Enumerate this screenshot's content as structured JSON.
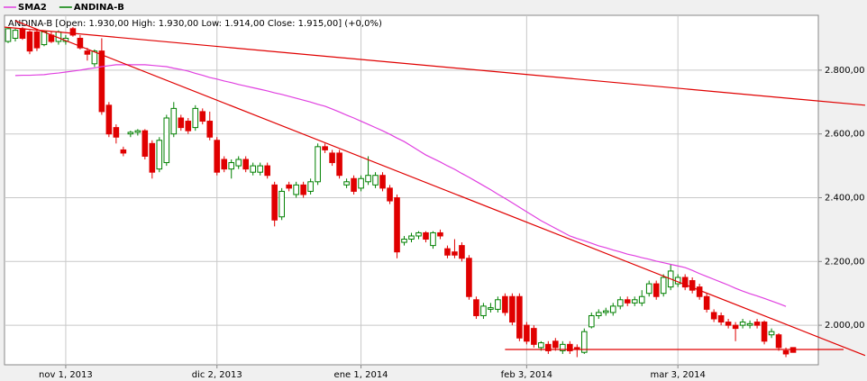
{
  "chart_data": {
    "type": "candlestick",
    "info": "ANDINA-B [Open: 1.930,00 High: 1.930,00 Low: 1.914,00 Close: 1.915,00] (+0,0%)",
    "categories": [
      null,
      null,
      null,
      null,
      null,
      null,
      null,
      null,
      "nov 1, 2013",
      null,
      null,
      null,
      null,
      null,
      null,
      null,
      null,
      null,
      null,
      null,
      null,
      null,
      null,
      null,
      null,
      null,
      null,
      null,
      null,
      "dic 2, 2013",
      null,
      null,
      null,
      null,
      null,
      null,
      null,
      null,
      null,
      null,
      null,
      null,
      null,
      null,
      null,
      null,
      null,
      null,
      null,
      "ene 1, 2014",
      null,
      null,
      null,
      null,
      null,
      null,
      null,
      null,
      null,
      null,
      null,
      null,
      null,
      null,
      null,
      null,
      null,
      null,
      null,
      null,
      null,
      null,
      "feb 3, 2014",
      null,
      null,
      null,
      null,
      null,
      null,
      null,
      null,
      null,
      null,
      null,
      null,
      null,
      null,
      null,
      null,
      null,
      null,
      null,
      null,
      "mar 3, 2014",
      null,
      null,
      null,
      null,
      null,
      null,
      null,
      null,
      null,
      null,
      null,
      null,
      null,
      null,
      null,
      null,
      null,
      null,
      null
    ],
    "series": [
      {
        "name": "ANDINA-B",
        "color": "#008000",
        "down_color": "#e00000",
        "open": [
          2890,
          2900,
          2930,
          2920,
          2920,
          2880,
          2910,
          2890,
          2890,
          2930,
          2900,
          2860,
          2820,
          2860,
          2690,
          2620,
          2550,
          2600,
          2605,
          2610,
          2570,
          2490,
          2510,
          2600,
          2650,
          2640,
          2620,
          2670,
          2640,
          2580,
          2520,
          2490,
          2500,
          2520,
          2480,
          2480,
          2500,
          2440,
          2340,
          2440,
          2410,
          2440,
          2420,
          2450,
          2560,
          2540,
          2540,
          2440,
          2460,
          2430,
          2450,
          2440,
          2470,
          2430,
          2400,
          2260,
          2270,
          2280,
          2290,
          2250,
          2290,
          2240,
          2230,
          2250,
          2210,
          2080,
          2030,
          2050,
          2050,
          2090,
          2090,
          2090,
          2000,
          1990,
          1930,
          1940,
          1950,
          1920,
          1940,
          1930,
          1915,
          1995,
          2030,
          2040,
          2040,
          2060,
          2080,
          2070,
          2070,
          2100,
          2130,
          2100,
          2120,
          2130,
          2150,
          2140,
          2120,
          2090,
          2040,
          2030,
          2010,
          2000,
          2000,
          2000,
          2010,
          2010,
          1970,
          1970,
          1920,
          1930,
          null,
          null,
          null
        ],
        "high": [
          2935,
          2930,
          2935,
          2925,
          2930,
          2925,
          2920,
          2925,
          2910,
          2935,
          2910,
          2870,
          2865,
          2900,
          2700,
          2630,
          2560,
          2610,
          2615,
          2615,
          2580,
          2590,
          2660,
          2700,
          2660,
          2650,
          2690,
          2680,
          2670,
          2590,
          2530,
          2520,
          2530,
          2530,
          2510,
          2510,
          2510,
          2450,
          2430,
          2450,
          2450,
          2450,
          2460,
          2570,
          2570,
          2550,
          2550,
          2460,
          2470,
          2470,
          2530,
          2480,
          2480,
          2440,
          2410,
          2280,
          2290,
          2295,
          2295,
          2295,
          2300,
          2250,
          2270,
          2260,
          2220,
          2090,
          2070,
          2070,
          2090,
          2100,
          2100,
          2100,
          2010,
          2000,
          1950,
          1950,
          1960,
          1950,
          1950,
          1940,
          1990,
          2040,
          2050,
          2055,
          2070,
          2090,
          2090,
          2090,
          2110,
          2140,
          2140,
          2160,
          2190,
          2160,
          2160,
          2150,
          2130,
          2100,
          2050,
          2040,
          2020,
          2010,
          2020,
          2015,
          2020,
          2015,
          1990,
          1975,
          1930,
          1930,
          null,
          null,
          null
        ],
        "low": [
          2885,
          2890,
          2895,
          2850,
          2860,
          2875,
          2885,
          2880,
          2880,
          2905,
          2865,
          2830,
          2810,
          2660,
          2590,
          2570,
          2530,
          2590,
          2595,
          2520,
          2460,
          2480,
          2500,
          2590,
          2610,
          2600,
          2610,
          2630,
          2580,
          2470,
          2480,
          2460,
          2490,
          2480,
          2470,
          2470,
          2460,
          2310,
          2330,
          2420,
          2400,
          2400,
          2410,
          2440,
          2540,
          2500,
          2460,
          2430,
          2410,
          2420,
          2440,
          2430,
          2420,
          2380,
          2210,
          2250,
          2260,
          2270,
          2260,
          2240,
          2270,
          2210,
          2210,
          2200,
          2080,
          2020,
          2020,
          2040,
          2040,
          2030,
          2000,
          1950,
          1940,
          1930,
          1920,
          1910,
          1920,
          1910,
          1910,
          1900,
          1910,
          1990,
          2020,
          2030,
          2030,
          2050,
          2060,
          2060,
          2060,
          2090,
          2080,
          2090,
          2110,
          2120,
          2110,
          2100,
          2080,
          2040,
          2010,
          2000,
          1990,
          1950,
          1990,
          1990,
          1990,
          1940,
          1960,
          1920,
          1900,
          1914,
          null,
          null,
          null
        ],
        "close": [
          2930,
          2925,
          2900,
          2860,
          2870,
          2920,
          2890,
          2920,
          2900,
          2910,
          2870,
          2850,
          2860,
          2670,
          2600,
          2590,
          2540,
          2605,
          2610,
          2530,
          2480,
          2580,
          2650,
          2680,
          2620,
          2610,
          2680,
          2640,
          2590,
          2480,
          2490,
          2510,
          2520,
          2490,
          2500,
          2500,
          2470,
          2330,
          2420,
          2430,
          2440,
          2410,
          2450,
          2560,
          2550,
          2510,
          2470,
          2450,
          2420,
          2460,
          2470,
          2470,
          2430,
          2390,
          2230,
          2270,
          2280,
          2290,
          2270,
          2290,
          2280,
          2220,
          2220,
          2210,
          2090,
          2030,
          2060,
          2055,
          2080,
          2040,
          2010,
          1960,
          1950,
          1940,
          1945,
          1920,
          1930,
          1940,
          1920,
          1925,
          1980,
          2030,
          2040,
          2045,
          2060,
          2080,
          2070,
          2080,
          2090,
          2130,
          2090,
          2150,
          2170,
          2150,
          2120,
          2110,
          2090,
          2050,
          2020,
          2010,
          2000,
          1990,
          2010,
          2005,
          2000,
          1950,
          1980,
          1930,
          1910,
          1915,
          null,
          null,
          null
        ]
      },
      {
        "name": "SMA2",
        "type": "line",
        "color": "#e040e0",
        "values": [
          null,
          2783,
          2784,
          2784,
          2785,
          2786,
          2789,
          2791,
          2794,
          2797,
          2800,
          2804,
          2807,
          2811,
          2814,
          2817,
          2817,
          2817,
          2817,
          2817,
          2815,
          2813,
          2811,
          2806,
          2802,
          2797,
          2790,
          2784,
          2777,
          2772,
          2766,
          2761,
          2755,
          2750,
          2745,
          2740,
          2735,
          2729,
          2724,
          2718,
          2712,
          2706,
          2700,
          2693,
          2687,
          2678,
          2669,
          2659,
          2650,
          2640,
          2630,
          2620,
          2610,
          2599,
          2587,
          2576,
          2562,
          2548,
          2534,
          2523,
          2512,
          2500,
          2489,
          2476,
          2464,
          2451,
          2438,
          2425,
          2411,
          2398,
          2384,
          2370,
          2356,
          2342,
          2328,
          2316,
          2304,
          2292,
          2280,
          2272,
          2265,
          2257,
          2249,
          2243,
          2236,
          2230,
          2223,
          2218,
          2212,
          2207,
          2201,
          2196,
          2191,
          2186,
          2181,
          2172,
          2162,
          2153,
          2144,
          2135,
          2126,
          2116,
          2107,
          2099,
          2092,
          2084,
          2076,
          2068,
          2059,
          null,
          null,
          null,
          null
        ]
      }
    ],
    "trendlines": [
      {
        "color": "#e00000",
        "x": [
          -0.5,
          119
        ],
        "y": [
          2935,
          2690
        ]
      },
      {
        "color": "#e00000",
        "x": [
          1,
          119
        ],
        "y": [
          2955,
          1905
        ]
      },
      {
        "color": "#e00000",
        "x": [
          69,
          116
        ],
        "y": [
          1924,
          1924
        ]
      }
    ],
    "ylim": [
      1876,
      2972
    ],
    "yticks": [
      {
        "value": 2000,
        "label": "2.000,00"
      },
      {
        "value": 2200,
        "label": "2.200,00"
      },
      {
        "value": 2400,
        "label": "2.400,00"
      },
      {
        "value": 2600,
        "label": "2.600,00"
      },
      {
        "value": 2800,
        "label": "2.800,00"
      }
    ],
    "grid": true
  }
}
